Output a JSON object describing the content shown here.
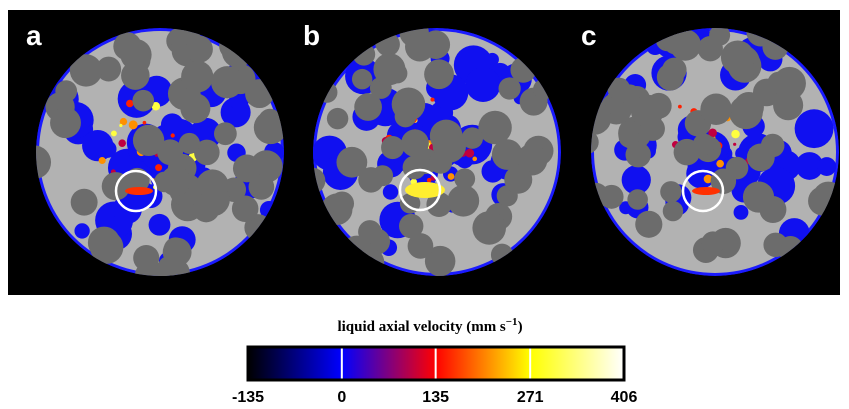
{
  "panels": [
    {
      "label": "a"
    },
    {
      "label": "b"
    },
    {
      "label": "c"
    }
  ],
  "colorbar": {
    "title": "liquid axial velocity (mm s",
    "title_superscript": "−1",
    "title_end": ")",
    "range": [
      -135,
      406
    ],
    "ticks": [
      -135,
      0,
      135,
      271,
      406
    ],
    "colors": [
      "#000000",
      "#0000ff",
      "#ff0000",
      "#ffff00",
      "#ffffff"
    ]
  }
}
